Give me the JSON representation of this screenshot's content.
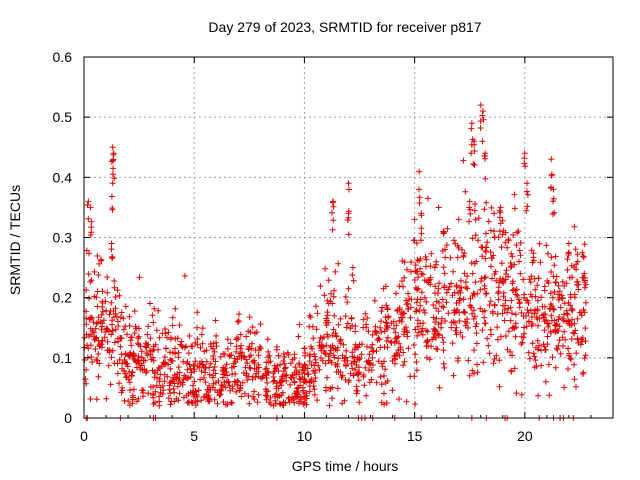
{
  "chart_data": {
    "type": "scatter",
    "title": "Day 279 of 2023, SRMTID for receiver p817",
    "xlabel": "GPS time / hours",
    "ylabel": "SRMTID / TECUs",
    "xlim": [
      0,
      24
    ],
    "ylim": [
      0,
      0.6
    ],
    "x_ticks": [
      0,
      5,
      10,
      15,
      20
    ],
    "y_ticks": [
      0,
      0.1,
      0.2,
      0.3,
      0.4,
      0.5,
      0.6
    ],
    "x_tick_labels": [
      "0",
      "5",
      "10",
      "15",
      "20"
    ],
    "y_tick_labels": [
      "0",
      "0.1",
      "0.2",
      "0.3",
      "0.4",
      "0.5",
      "0.6"
    ],
    "grid": true,
    "marker": "plus",
    "color": "#e00000",
    "series": [
      {
        "name": "SRMTID",
        "profile": [
          [
            0.0,
            0.13
          ],
          [
            0.3,
            0.15
          ],
          [
            0.6,
            0.14
          ],
          [
            1.0,
            0.15
          ],
          [
            1.5,
            0.13
          ],
          [
            2.0,
            0.09
          ],
          [
            2.5,
            0.09
          ],
          [
            3.0,
            0.09
          ],
          [
            3.5,
            0.08
          ],
          [
            4.0,
            0.08
          ],
          [
            4.5,
            0.08
          ],
          [
            5.0,
            0.08
          ],
          [
            5.5,
            0.07
          ],
          [
            6.0,
            0.07
          ],
          [
            6.5,
            0.07
          ],
          [
            7.0,
            0.08
          ],
          [
            7.5,
            0.08
          ],
          [
            8.0,
            0.08
          ],
          [
            8.5,
            0.06
          ],
          [
            9.0,
            0.06
          ],
          [
            9.5,
            0.06
          ],
          [
            10.0,
            0.07
          ],
          [
            10.5,
            0.11
          ],
          [
            11.0,
            0.14
          ],
          [
            11.5,
            0.12
          ],
          [
            12.0,
            0.1
          ],
          [
            12.5,
            0.09
          ],
          [
            13.0,
            0.1
          ],
          [
            13.5,
            0.11
          ],
          [
            14.0,
            0.13
          ],
          [
            14.5,
            0.16
          ],
          [
            15.0,
            0.2
          ],
          [
            15.5,
            0.17
          ],
          [
            16.0,
            0.16
          ],
          [
            16.5,
            0.18
          ],
          [
            17.0,
            0.18
          ],
          [
            17.5,
            0.19
          ],
          [
            18.0,
            0.22
          ],
          [
            18.5,
            0.22
          ],
          [
            19.0,
            0.21
          ],
          [
            19.5,
            0.2
          ],
          [
            20.0,
            0.17
          ],
          [
            20.5,
            0.18
          ],
          [
            21.0,
            0.16
          ],
          [
            21.5,
            0.16
          ],
          [
            22.0,
            0.17
          ],
          [
            22.5,
            0.16
          ],
          [
            22.8,
            0.17
          ]
        ],
        "spikes": [
          [
            0.2,
            0.36
          ],
          [
            0.3,
            0.35
          ],
          [
            1.3,
            0.45
          ],
          [
            1.35,
            0.44
          ],
          [
            1.3,
            0.39
          ],
          [
            1.25,
            0.29
          ],
          [
            11.3,
            0.36
          ],
          [
            12.0,
            0.39
          ],
          [
            12.0,
            0.34
          ],
          [
            12.2,
            0.25
          ],
          [
            15.0,
            0.33
          ],
          [
            15.2,
            0.38
          ],
          [
            15.3,
            0.34
          ],
          [
            16.3,
            0.31
          ],
          [
            17.0,
            0.33
          ],
          [
            17.5,
            0.36
          ],
          [
            17.6,
            0.49
          ],
          [
            17.7,
            0.46
          ],
          [
            18.0,
            0.52
          ],
          [
            18.1,
            0.51
          ],
          [
            18.2,
            0.44
          ],
          [
            18.6,
            0.34
          ],
          [
            18.9,
            0.35
          ],
          [
            20.0,
            0.44
          ],
          [
            20.1,
            0.39
          ],
          [
            21.2,
            0.43
          ],
          [
            21.3,
            0.38
          ],
          [
            22.0,
            0.29
          ],
          [
            22.4,
            0.26
          ],
          [
            22.7,
            0.24
          ]
        ],
        "zeros": [
          0.1,
          0.15,
          1.65,
          3.15,
          3.25,
          8.75,
          12.45,
          12.6,
          12.75,
          13.1,
          14.1,
          15.3,
          17.6,
          18.25,
          19.1,
          19.2,
          20.65,
          21.3,
          21.6,
          21.75,
          22.2
        ]
      }
    ]
  }
}
